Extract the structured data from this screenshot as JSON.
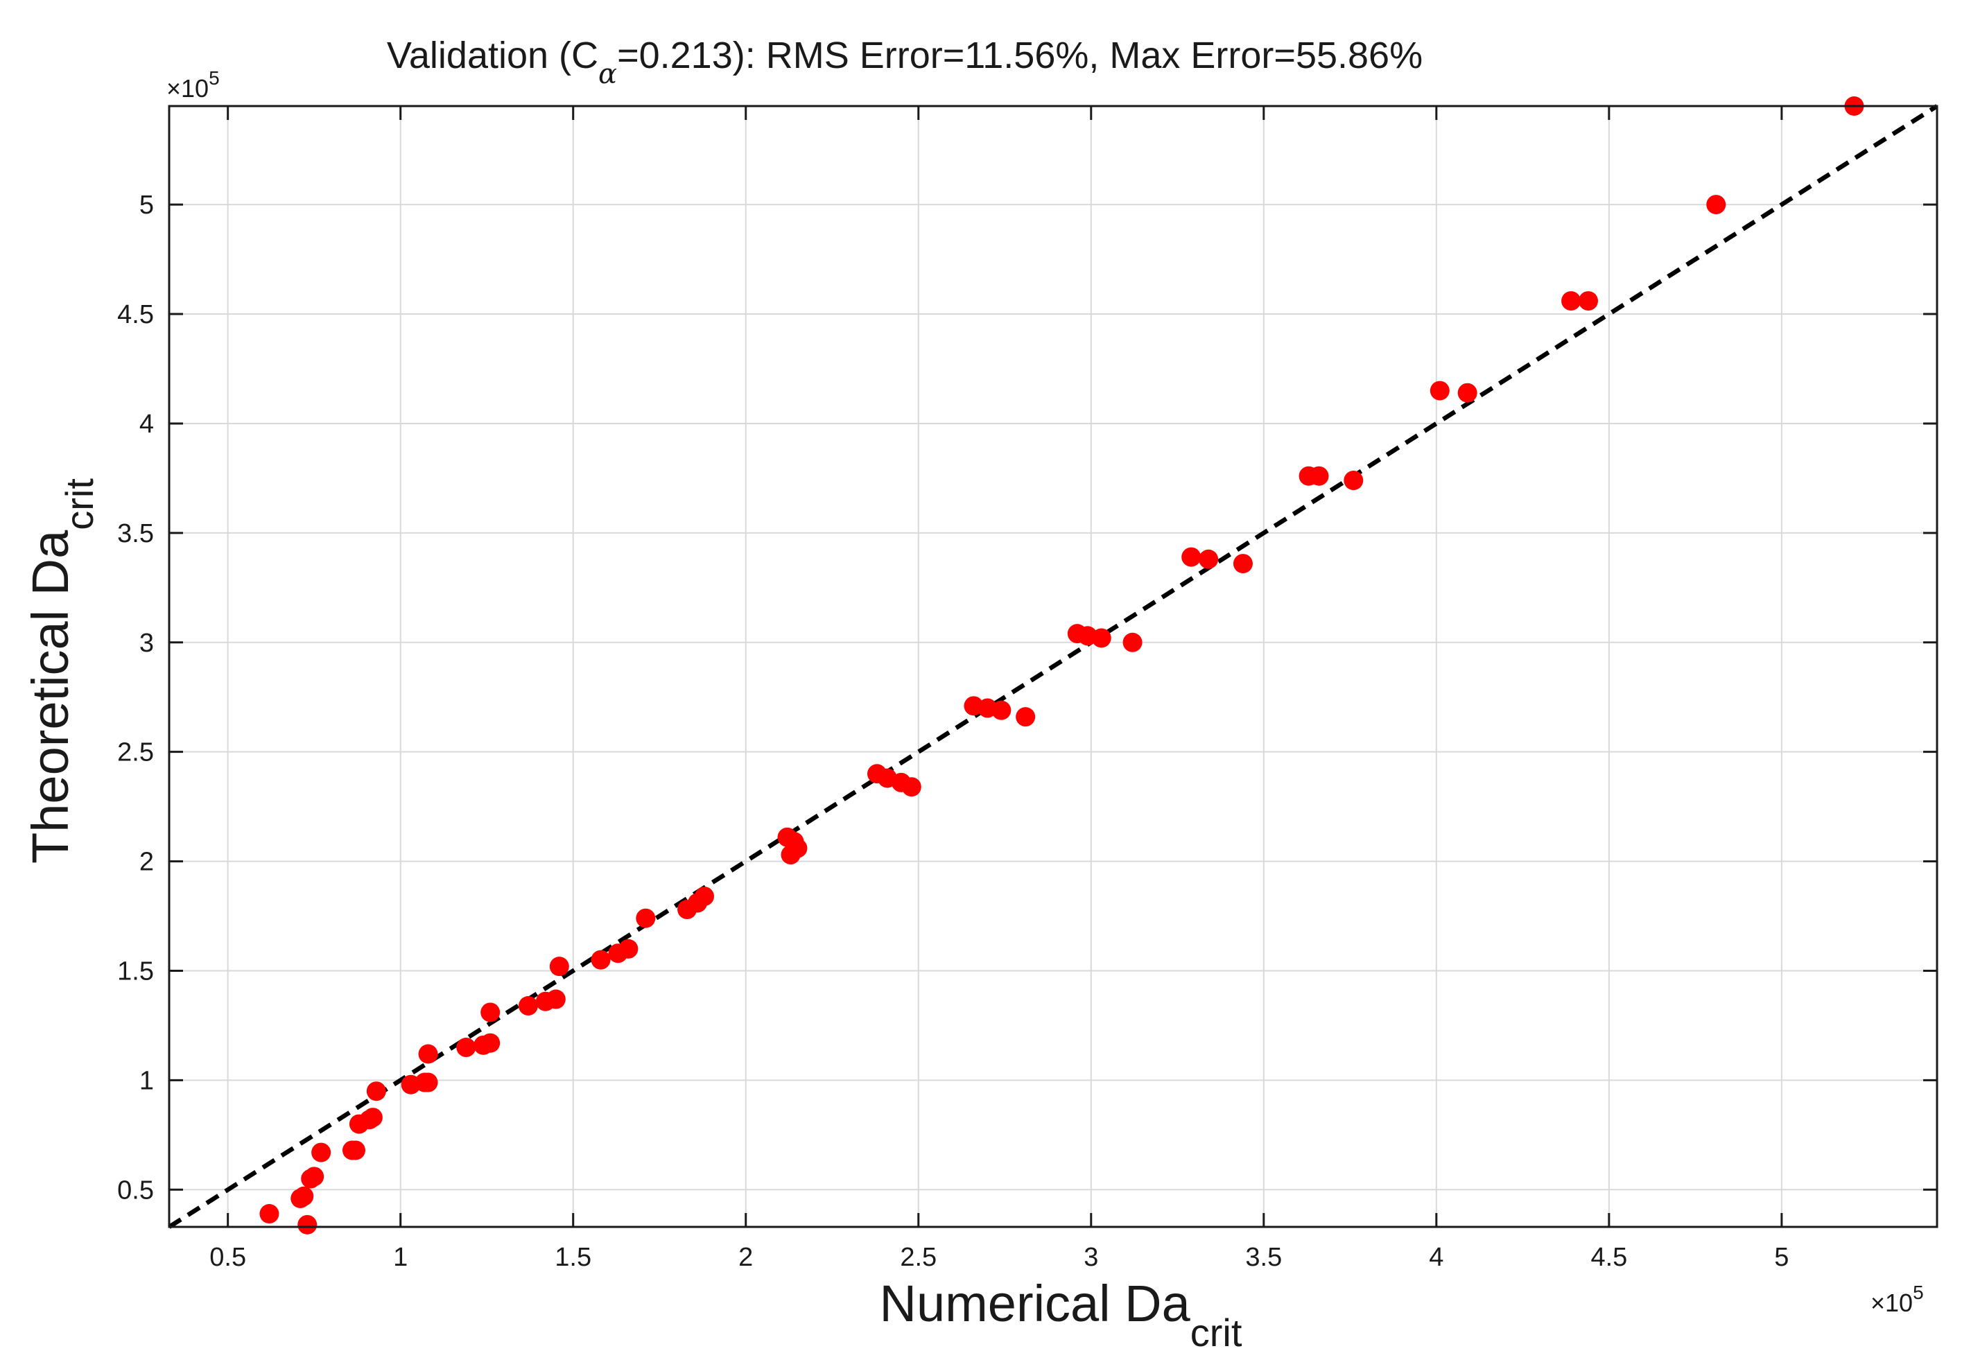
{
  "chart_data": {
    "type": "scatter",
    "title": {
      "prefix": "Validation (C",
      "subscript": "α",
      "suffix": "=0.213): RMS Error=11.56%, Max Error=55.86%"
    },
    "xlabel": {
      "main": "Numerical Da",
      "sub": "crit"
    },
    "ylabel": {
      "main": "Theoretical Da",
      "sub": "crit"
    },
    "x_exponent": {
      "prefix": "×10",
      "power": "5"
    },
    "y_exponent": {
      "prefix": "×10",
      "power": "5"
    },
    "xlim": [
      0.33,
      5.45
    ],
    "ylim": [
      0.33,
      5.45
    ],
    "xticks": [
      0.5,
      1,
      1.5,
      2,
      2.5,
      3,
      3.5,
      4,
      4.5,
      5
    ],
    "xtick_labels": [
      "0.5",
      "1",
      "1.5",
      "2",
      "2.5",
      "3",
      "3.5",
      "4",
      "4.5",
      "5"
    ],
    "yticks": [
      0.5,
      1,
      1.5,
      2,
      2.5,
      3,
      3.5,
      4,
      4.5,
      5
    ],
    "ytick_labels": [
      "0.5",
      "1",
      "1.5",
      "2",
      "2.5",
      "3",
      "3.5",
      "4",
      "4.5",
      "5"
    ],
    "grid": true,
    "marker_color": "#ff0000",
    "reference_line": {
      "style": "dashed",
      "color": "#000000",
      "from": [
        0.33,
        0.33
      ],
      "to": [
        5.45,
        5.45
      ]
    },
    "points": [
      [
        0.62,
        0.39
      ],
      [
        0.71,
        0.46
      ],
      [
        0.72,
        0.47
      ],
      [
        0.73,
        0.34
      ],
      [
        0.74,
        0.55
      ],
      [
        0.75,
        0.56
      ],
      [
        0.77,
        0.67
      ],
      [
        0.86,
        0.68
      ],
      [
        0.87,
        0.68
      ],
      [
        0.88,
        0.8
      ],
      [
        0.91,
        0.82
      ],
      [
        0.92,
        0.83
      ],
      [
        0.93,
        0.95
      ],
      [
        1.03,
        0.98
      ],
      [
        1.07,
        0.99
      ],
      [
        1.08,
        0.99
      ],
      [
        1.08,
        1.12
      ],
      [
        1.19,
        1.15
      ],
      [
        1.24,
        1.16
      ],
      [
        1.26,
        1.17
      ],
      [
        1.26,
        1.31
      ],
      [
        1.37,
        1.34
      ],
      [
        1.42,
        1.36
      ],
      [
        1.45,
        1.37
      ],
      [
        1.46,
        1.52
      ],
      [
        1.58,
        1.55
      ],
      [
        1.63,
        1.58
      ],
      [
        1.66,
        1.6
      ],
      [
        1.71,
        1.74
      ],
      [
        1.83,
        1.78
      ],
      [
        1.86,
        1.81
      ],
      [
        1.88,
        1.84
      ],
      [
        2.12,
        2.11
      ],
      [
        2.13,
        2.03
      ],
      [
        2.14,
        2.09
      ],
      [
        2.15,
        2.06
      ],
      [
        2.38,
        2.4
      ],
      [
        2.41,
        2.38
      ],
      [
        2.45,
        2.36
      ],
      [
        2.48,
        2.34
      ],
      [
        2.66,
        2.71
      ],
      [
        2.7,
        2.7
      ],
      [
        2.74,
        2.69
      ],
      [
        2.81,
        2.66
      ],
      [
        2.96,
        3.04
      ],
      [
        2.99,
        3.03
      ],
      [
        3.03,
        3.02
      ],
      [
        3.12,
        3.0
      ],
      [
        3.29,
        3.39
      ],
      [
        3.34,
        3.38
      ],
      [
        3.44,
        3.36
      ],
      [
        3.63,
        3.76
      ],
      [
        3.66,
        3.76
      ],
      [
        3.76,
        3.74
      ],
      [
        4.01,
        4.15
      ],
      [
        4.09,
        4.14
      ],
      [
        4.39,
        4.56
      ],
      [
        4.44,
        4.56
      ],
      [
        4.81,
        5.0
      ],
      [
        5.21,
        5.45
      ]
    ]
  }
}
